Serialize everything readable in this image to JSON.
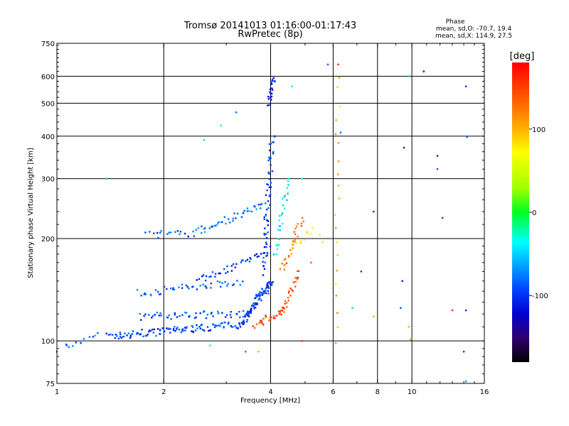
{
  "chart_data": {
    "type": "scatter",
    "title": "Tromsø 20141013 01:16:00-01:17:43",
    "subtitle": "RwPretec (8p)",
    "xlabel": "Frequency [MHz]",
    "ylabel": "Stationary phase Virtual Height [km]",
    "x_scale": "log",
    "y_scale": "log",
    "xlim": [
      1,
      16
    ],
    "ylim": [
      75,
      750
    ],
    "x_ticks": [
      1,
      2,
      4,
      6,
      8,
      10,
      16
    ],
    "x_tick_labels": [
      "1",
      "2",
      "4",
      "6",
      "8",
      "10",
      "16"
    ],
    "y_ticks": [
      75,
      100,
      200,
      300,
      400,
      500,
      600,
      750
    ],
    "y_tick_labels": [
      "75",
      "100",
      "200",
      "300",
      "400",
      "500",
      "600",
      "750"
    ],
    "grid": true,
    "stats": {
      "heading": "Phase",
      "line_o": "mean, sd,O: -70.7, 19.4",
      "line_x": "mean, sd,X: 114.9, 27.5"
    },
    "colorbar": {
      "label": "[deg]",
      "range": [
        -180,
        180
      ],
      "ticks": [
        100,
        0,
        -100
      ],
      "tick_labels": [
        "100",
        "0",
        "-100"
      ]
    },
    "traces": [
      {
        "x0": 1.4,
        "x1": 3.3,
        "y0": 103,
        "y1": 112,
        "phase": -95,
        "n": 110
      },
      {
        "x0": 3.3,
        "x1": 4.0,
        "y0": 112,
        "y1": 150,
        "phase": -100,
        "n": 60
      },
      {
        "x0": 1.05,
        "x1": 1.3,
        "y0": 97,
        "y1": 103,
        "phase": -80,
        "n": 12
      },
      {
        "x0": 1.7,
        "x1": 3.4,
        "y0": 118,
        "y1": 120,
        "phase": -90,
        "n": 50
      },
      {
        "x0": 3.4,
        "x1": 4.1,
        "y0": 120,
        "y1": 150,
        "phase": -95,
        "n": 30
      },
      {
        "x0": 1.7,
        "x1": 3.3,
        "y0": 138,
        "y1": 150,
        "phase": -85,
        "n": 45
      },
      {
        "x0": 2.5,
        "x1": 4.0,
        "y0": 150,
        "y1": 185,
        "phase": -100,
        "n": 40
      },
      {
        "x0": 1.8,
        "x1": 2.5,
        "y0": 205,
        "y1": 208,
        "phase": -90,
        "n": 20
      },
      {
        "x0": 2.5,
        "x1": 3.8,
        "y0": 210,
        "y1": 250,
        "phase": -80,
        "n": 40
      },
      {
        "x0": 3.8,
        "x1": 4.05,
        "y0": 160,
        "y1": 400,
        "phase": -100,
        "n": 60
      },
      {
        "x0": 3.95,
        "x1": 4.1,
        "y0": 500,
        "y1": 600,
        "phase": -110,
        "n": 20
      },
      {
        "x0": 3.6,
        "x1": 4.4,
        "y0": 110,
        "y1": 125,
        "phase": 150,
        "n": 30
      },
      {
        "x0": 4.3,
        "x1": 4.8,
        "y0": 120,
        "y1": 160,
        "phase": 140,
        "n": 25
      },
      {
        "x0": 4.3,
        "x1": 4.9,
        "y0": 160,
        "y1": 230,
        "phase": 120,
        "n": 30
      },
      {
        "x0": 4.1,
        "x1": 4.5,
        "y0": 180,
        "y1": 300,
        "phase": -40,
        "n": 30
      },
      {
        "x0": 4.6,
        "x1": 5.3,
        "y0": 190,
        "y1": 210,
        "phase": 80,
        "n": 10
      },
      {
        "x0": 6.1,
        "x1": 6.2,
        "y0": 100,
        "y1": 600,
        "phase": 100,
        "n": 20
      }
    ],
    "points": [
      {
        "x": 1.38,
        "y": 300,
        "phase": -50
      },
      {
        "x": 2.9,
        "y": 430,
        "phase": -40
      },
      {
        "x": 3.2,
        "y": 470,
        "phase": -80
      },
      {
        "x": 2.6,
        "y": 390,
        "phase": -50
      },
      {
        "x": 4.6,
        "y": 560,
        "phase": -20
      },
      {
        "x": 5.8,
        "y": 650,
        "phase": -90
      },
      {
        "x": 6.2,
        "y": 650,
        "phase": 160
      },
      {
        "x": 6.3,
        "y": 410,
        "phase": -80
      },
      {
        "x": 7.8,
        "y": 240,
        "phase": -100
      },
      {
        "x": 9.5,
        "y": 370,
        "phase": -110
      },
      {
        "x": 9.8,
        "y": 600,
        "phase": -50
      },
      {
        "x": 10.8,
        "y": 620,
        "phase": -110
      },
      {
        "x": 11.8,
        "y": 350,
        "phase": -110
      },
      {
        "x": 11.8,
        "y": 320,
        "phase": -90
      },
      {
        "x": 12.2,
        "y": 230,
        "phase": -100
      },
      {
        "x": 9.4,
        "y": 150,
        "phase": -110
      },
      {
        "x": 9.3,
        "y": 125,
        "phase": -90
      },
      {
        "x": 9.8,
        "y": 110,
        "phase": 100
      },
      {
        "x": 9.9,
        "y": 101,
        "phase": 100
      },
      {
        "x": 13.0,
        "y": 123,
        "phase": 160
      },
      {
        "x": 14.2,
        "y": 560,
        "phase": -100
      },
      {
        "x": 14.3,
        "y": 398,
        "phase": -90
      },
      {
        "x": 14.0,
        "y": 93,
        "phase": -100
      },
      {
        "x": 14.2,
        "y": 76,
        "phase": -70
      },
      {
        "x": 14.2,
        "y": 123,
        "phase": -110
      },
      {
        "x": 7.8,
        "y": 118,
        "phase": 100
      },
      {
        "x": 7.2,
        "y": 160,
        "phase": -100
      },
      {
        "x": 6.8,
        "y": 125,
        "phase": -50
      },
      {
        "x": 3.4,
        "y": 93,
        "phase": 150
      },
      {
        "x": 3.7,
        "y": 93,
        "phase": 100
      },
      {
        "x": 4.9,
        "y": 100,
        "phase": 160
      },
      {
        "x": 2.7,
        "y": 97,
        "phase": -40
      },
      {
        "x": 1.0,
        "y": 93,
        "phase": -80
      },
      {
        "x": 5.5,
        "y": 205,
        "phase": 80
      },
      {
        "x": 5.6,
        "y": 195,
        "phase": 90
      },
      {
        "x": 5.2,
        "y": 170,
        "phase": 130
      },
      {
        "x": 4.9,
        "y": 300,
        "phase": -30
      }
    ]
  }
}
